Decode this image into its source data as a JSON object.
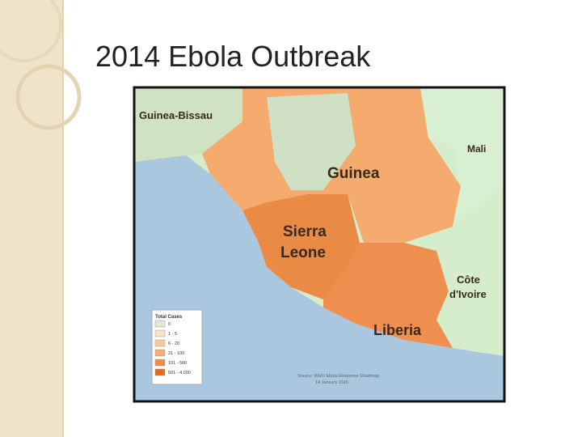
{
  "header": {
    "title": "2014 Ebola Outbreak"
  },
  "map": {
    "labels": {
      "guinea_bissau": "Guinea-Bissau",
      "mali": "Mali",
      "guinea": "Guinea",
      "sierra_leone": [
        "Sierra",
        "Leone"
      ],
      "cote_divoire": [
        "Côte",
        "d'Ivoire"
      ],
      "liberia": "Liberia"
    },
    "legend": {
      "title": "Total Cases",
      "items": [
        {
          "label": "0",
          "color": "#dfe8d8"
        },
        {
          "label": "1 - 5",
          "color": "#fde2c8"
        },
        {
          "label": "6 - 20",
          "color": "#fbc99c"
        },
        {
          "label": "21 - 100",
          "color": "#f8ad72"
        },
        {
          "label": "101 - 500",
          "color": "#f08c46"
        },
        {
          "label": "501 - 4,000",
          "color": "#e06d22"
        }
      ]
    },
    "source": [
      "Source: WHO Ebola Response Roadmap",
      "14 January 2015"
    ]
  }
}
